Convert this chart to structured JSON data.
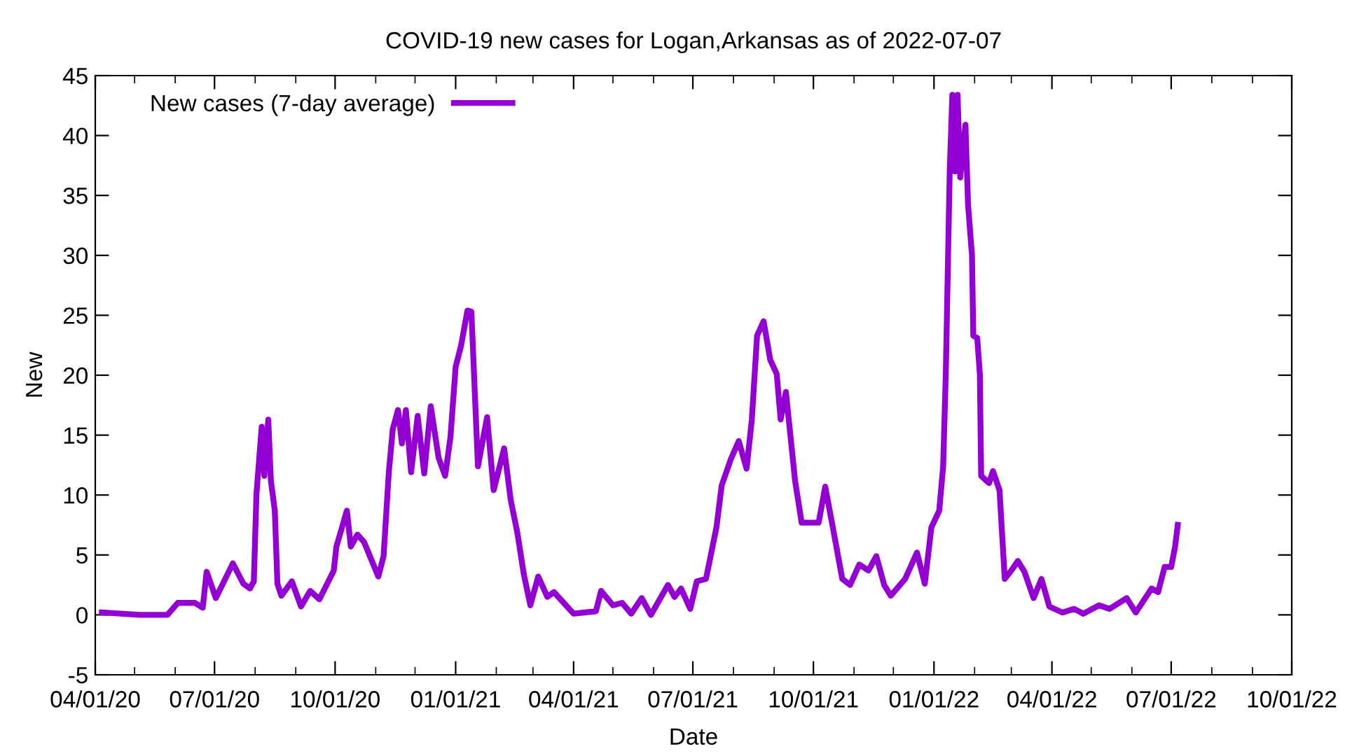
{
  "chart_data": {
    "type": "line",
    "title": "COVID-19 new cases for Logan,Arkansas as of 2022-07-07",
    "xlabel": "Date",
    "ylabel": "New",
    "x": [
      "2020-04-06",
      "2020-05-05",
      "2020-05-26",
      "2020-06-03",
      "2020-06-16",
      "2020-06-22",
      "2020-06-25",
      "2020-07-02",
      "2020-07-15",
      "2020-07-23",
      "2020-07-28",
      "2020-07-31",
      "2020-08-02",
      "2020-08-06",
      "2020-08-08",
      "2020-08-11",
      "2020-08-13",
      "2020-08-16",
      "2020-08-18",
      "2020-08-21",
      "2020-08-29",
      "2020-09-05",
      "2020-09-12",
      "2020-09-19",
      "2020-09-30",
      "2020-10-02",
      "2020-10-10",
      "2020-10-13",
      "2020-10-18",
      "2020-10-23",
      "2020-11-03",
      "2020-11-07",
      "2020-11-11",
      "2020-11-14",
      "2020-11-18",
      "2020-11-21",
      "2020-11-24",
      "2020-11-28",
      "2020-12-03",
      "2020-12-08",
      "2020-12-13",
      "2020-12-19",
      "2020-12-24",
      "2020-12-28",
      "2021-01-01",
      "2021-01-05",
      "2021-01-10",
      "2021-01-13",
      "2021-01-18",
      "2021-01-25",
      "2021-01-30",
      "2021-02-07",
      "2021-02-12",
      "2021-02-17",
      "2021-02-22",
      "2021-02-27",
      "2021-03-05",
      "2021-03-12",
      "2021-03-17",
      "2021-04-01",
      "2021-04-18",
      "2021-04-22",
      "2021-05-01",
      "2021-05-08",
      "2021-05-15",
      "2021-05-23",
      "2021-05-30",
      "2021-06-12",
      "2021-06-17",
      "2021-06-22",
      "2021-06-29",
      "2021-07-04",
      "2021-07-11",
      "2021-07-19",
      "2021-07-23",
      "2021-07-30",
      "2021-08-05",
      "2021-08-11",
      "2021-08-15",
      "2021-08-19",
      "2021-08-24",
      "2021-08-29",
      "2021-09-03",
      "2021-09-06",
      "2021-09-10",
      "2021-09-17",
      "2021-09-22",
      "2021-10-05",
      "2021-10-10",
      "2021-10-17",
      "2021-10-23",
      "2021-10-29",
      "2021-11-05",
      "2021-11-12",
      "2021-11-18",
      "2021-11-24",
      "2021-11-29",
      "2021-12-10",
      "2021-12-19",
      "2021-12-25",
      "2021-12-30",
      "2022-01-05",
      "2022-01-08",
      "2022-01-10",
      "2022-01-13",
      "2022-01-15",
      "2022-01-17",
      "2022-01-19",
      "2022-01-21",
      "2022-01-25",
      "2022-01-27",
      "2022-01-30",
      "2022-01-31",
      "2022-02-03",
      "2022-02-05",
      "2022-02-06",
      "2022-02-12",
      "2022-02-15",
      "2022-02-20",
      "2022-02-24",
      "2022-03-01",
      "2022-03-06",
      "2022-03-11",
      "2022-03-18",
      "2022-03-24",
      "2022-03-30",
      "2022-04-09",
      "2022-04-18",
      "2022-04-25",
      "2022-05-07",
      "2022-05-15",
      "2022-05-28",
      "2022-06-04",
      "2022-06-16",
      "2022-06-21",
      "2022-06-26",
      "2022-07-01",
      "2022-07-04",
      "2022-07-06"
    ],
    "series": [
      {
        "name": "New cases (7-day average)",
        "color": "#9400d3",
        "values": [
          0.2,
          0.0,
          0.0,
          1.0,
          1.0,
          0.6,
          3.6,
          1.4,
          4.3,
          2.6,
          2.2,
          2.8,
          10.1,
          15.7,
          11.6,
          16.3,
          11.2,
          8.7,
          2.6,
          1.6,
          2.8,
          0.7,
          2.0,
          1.3,
          3.7,
          5.7,
          8.7,
          5.7,
          6.7,
          6.1,
          3.2,
          4.9,
          11.9,
          15.5,
          17.1,
          14.3,
          17.1,
          11.9,
          16.6,
          11.8,
          17.4,
          13.1,
          11.6,
          14.8,
          20.7,
          22.4,
          25.4,
          25.3,
          12.4,
          16.5,
          10.4,
          13.9,
          9.6,
          6.9,
          3.4,
          0.8,
          3.2,
          1.5,
          1.9,
          0.1,
          0.3,
          2.0,
          0.8,
          1.0,
          0.1,
          1.4,
          0.0,
          2.5,
          1.5,
          2.2,
          0.5,
          2.8,
          3.0,
          7.3,
          10.8,
          13.0,
          14.5,
          12.2,
          16.3,
          23.3,
          24.5,
          21.3,
          20.1,
          16.3,
          18.6,
          11.2,
          7.7,
          7.7,
          10.7,
          6.6,
          3.0,
          2.5,
          4.2,
          3.7,
          4.9,
          2.5,
          1.6,
          3.0,
          5.2,
          2.6,
          7.3,
          8.7,
          12.4,
          20.1,
          37.0,
          43.4,
          37.0,
          43.4,
          36.5,
          40.9,
          34.2,
          30.0,
          23.3,
          23.1,
          20.1,
          11.6,
          11.0,
          12.0,
          10.4,
          3.0,
          3.7,
          4.5,
          3.6,
          1.4,
          3.0,
          0.7,
          0.2,
          0.5,
          0.1,
          0.8,
          0.5,
          1.4,
          0.2,
          2.2,
          1.9,
          4.0,
          4.0,
          5.7,
          7.5
        ]
      }
    ],
    "xlim": [
      "2020-04-01",
      "2022-10-01"
    ],
    "xticks": [
      {
        "value": "2020-04-01",
        "label": "04/01/20"
      },
      {
        "value": "2020-05-01",
        "label": null
      },
      {
        "value": "2020-06-01",
        "label": null
      },
      {
        "value": "2020-07-01",
        "label": "07/01/20"
      },
      {
        "value": "2020-08-01",
        "label": null
      },
      {
        "value": "2020-09-01",
        "label": null
      },
      {
        "value": "2020-10-01",
        "label": "10/01/20"
      },
      {
        "value": "2020-11-01",
        "label": null
      },
      {
        "value": "2020-12-01",
        "label": null
      },
      {
        "value": "2021-01-01",
        "label": "01/01/21"
      },
      {
        "value": "2021-02-01",
        "label": null
      },
      {
        "value": "2021-03-01",
        "label": null
      },
      {
        "value": "2021-04-01",
        "label": "04/01/21"
      },
      {
        "value": "2021-05-01",
        "label": null
      },
      {
        "value": "2021-06-01",
        "label": null
      },
      {
        "value": "2021-07-01",
        "label": "07/01/21"
      },
      {
        "value": "2021-08-01",
        "label": null
      },
      {
        "value": "2021-09-01",
        "label": null
      },
      {
        "value": "2021-10-01",
        "label": "10/01/21"
      },
      {
        "value": "2021-11-01",
        "label": null
      },
      {
        "value": "2021-12-01",
        "label": null
      },
      {
        "value": "2022-01-01",
        "label": "01/01/22"
      },
      {
        "value": "2022-02-01",
        "label": null
      },
      {
        "value": "2022-03-01",
        "label": null
      },
      {
        "value": "2022-04-01",
        "label": "04/01/22"
      },
      {
        "value": "2022-05-01",
        "label": null
      },
      {
        "value": "2022-06-01",
        "label": null
      },
      {
        "value": "2022-07-01",
        "label": "07/01/22"
      },
      {
        "value": "2022-08-01",
        "label": null
      },
      {
        "value": "2022-09-01",
        "label": null
      },
      {
        "value": "2022-10-01",
        "label": "10/01/22"
      }
    ],
    "ylim": [
      -5,
      45
    ],
    "yticks": [
      -5,
      0,
      5,
      10,
      15,
      20,
      25,
      30,
      35,
      40,
      45
    ],
    "grid": false,
    "legend": "top left",
    "line_style": "solid",
    "marker": "none"
  }
}
